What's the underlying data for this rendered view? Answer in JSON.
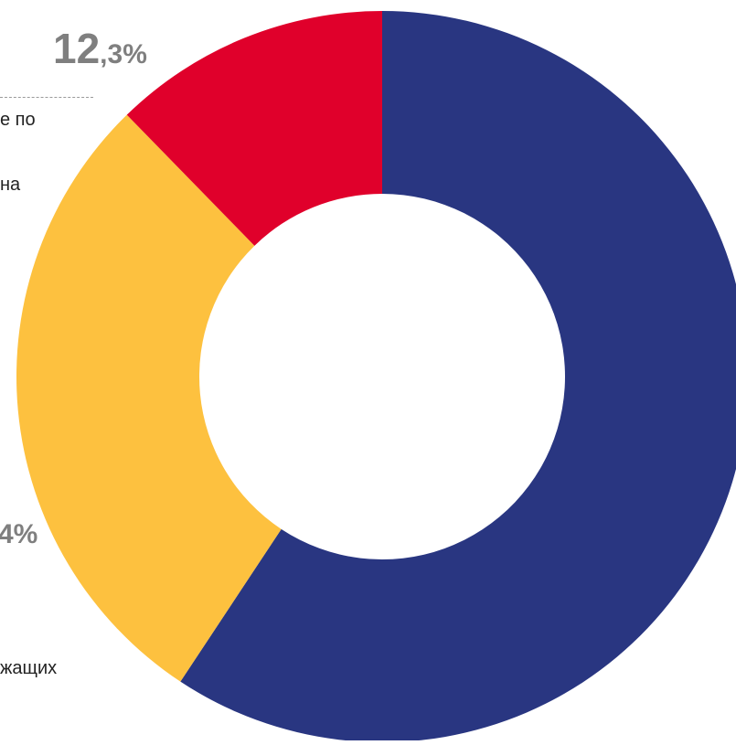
{
  "chart_data": {
    "type": "pie",
    "donut": true,
    "categories": [
      "",
      "",
      ""
    ],
    "values": [
      59.3,
      28.4,
      12.3
    ],
    "colors": [
      "#293681",
      "#FDC13F",
      "#E0002B"
    ],
    "value_labels": [
      {
        "int": "",
        "frac": ""
      },
      {
        "int": "",
        "frac": "4%"
      },
      {
        "int": "12",
        "frac": ",3%"
      }
    ],
    "text_fragments": [
      "е по",
      "на",
      "жащих"
    ]
  }
}
